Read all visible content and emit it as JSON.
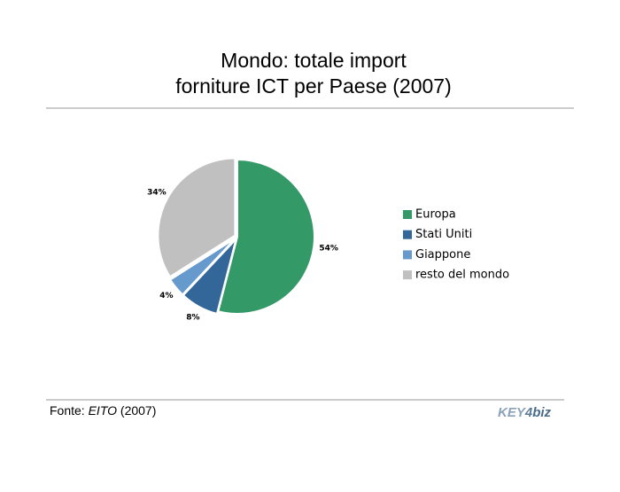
{
  "chart_data": {
    "type": "pie",
    "title": [
      "Mondo: totale import",
      "forniture ICT per Paese (2007)"
    ],
    "categories": [
      "Europa",
      "Stati Uniti",
      "Giappone",
      "resto del mondo"
    ],
    "values": [
      54,
      8,
      4,
      34
    ],
    "value_labels": [
      "54%",
      "8%",
      "4%",
      "34%"
    ],
    "colors": [
      "#339966",
      "#336699",
      "#6699cc",
      "#c0c0c0"
    ],
    "legend": "right"
  },
  "source": {
    "prefix": "Fonte:",
    "name": "EITO",
    "year": "(2007)"
  },
  "logo": {
    "key": "KEY",
    "four": "4",
    "biz": "biz"
  }
}
